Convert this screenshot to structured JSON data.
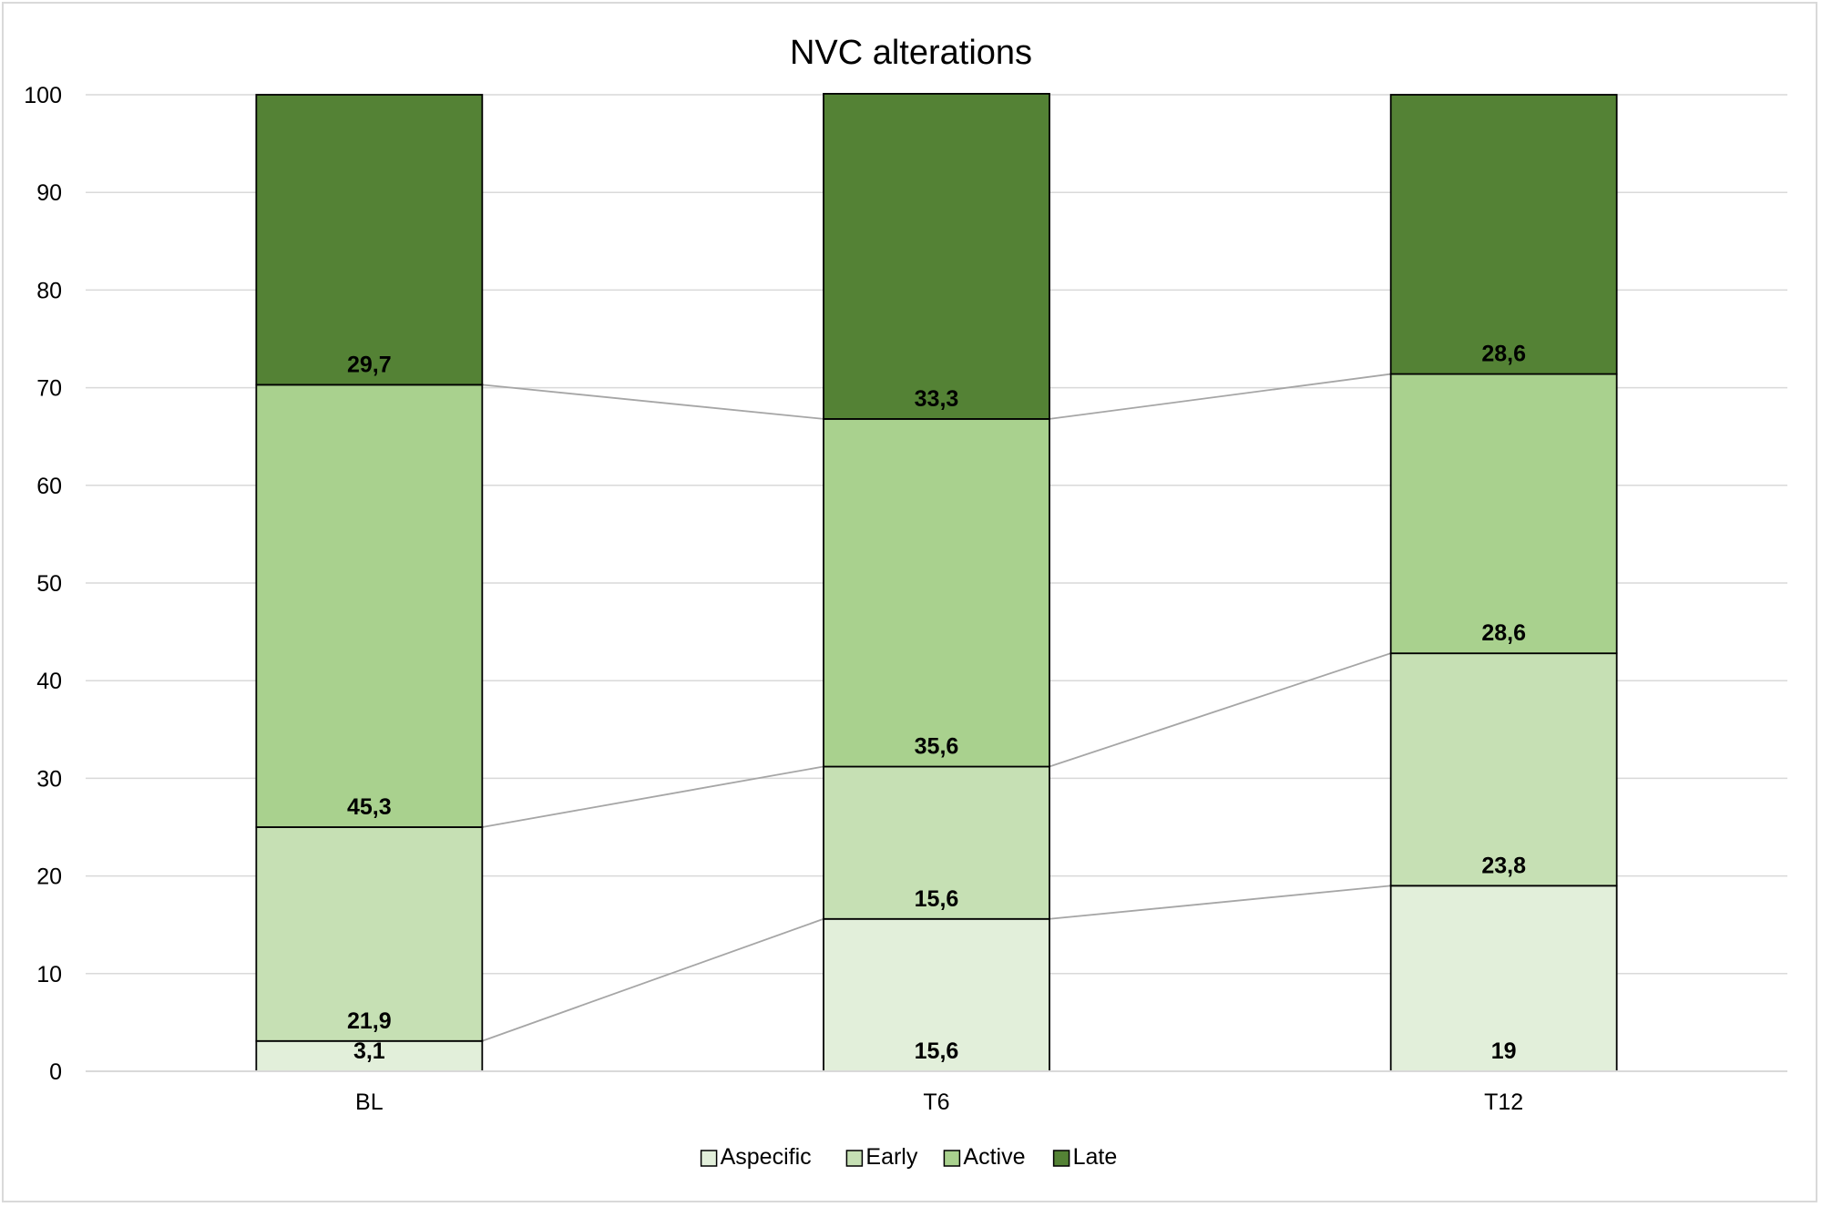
{
  "chart_data": {
    "type": "bar",
    "stacked": true,
    "title": "NVC alterations",
    "xlabel": "",
    "ylabel": "",
    "ylim": [
      0,
      100
    ],
    "yticks": [
      0,
      10,
      20,
      30,
      40,
      50,
      60,
      70,
      80,
      90,
      100
    ],
    "grid": true,
    "categories": [
      "BL",
      "T6",
      "T12"
    ],
    "series": [
      {
        "name": "Aspecific",
        "values": [
          3.1,
          15.6,
          19
        ],
        "labels": [
          "3,1",
          "15,6",
          "19"
        ],
        "color": "#e2efda"
      },
      {
        "name": "Early",
        "values": [
          21.9,
          15.6,
          23.8
        ],
        "labels": [
          "21,9",
          "15,6",
          "23,8"
        ],
        "color": "#c6e0b4"
      },
      {
        "name": "Active",
        "values": [
          45.3,
          35.6,
          28.6
        ],
        "labels": [
          "45,3",
          "35,6",
          "28,6"
        ],
        "color": "#a9d18e"
      },
      {
        "name": "Late",
        "values": [
          29.7,
          33.3,
          28.6
        ],
        "labels": [
          "29,7",
          "33,3",
          "28,6"
        ],
        "color": "#548235"
      }
    ],
    "legend_position": "bottom",
    "series_lines": true
  }
}
